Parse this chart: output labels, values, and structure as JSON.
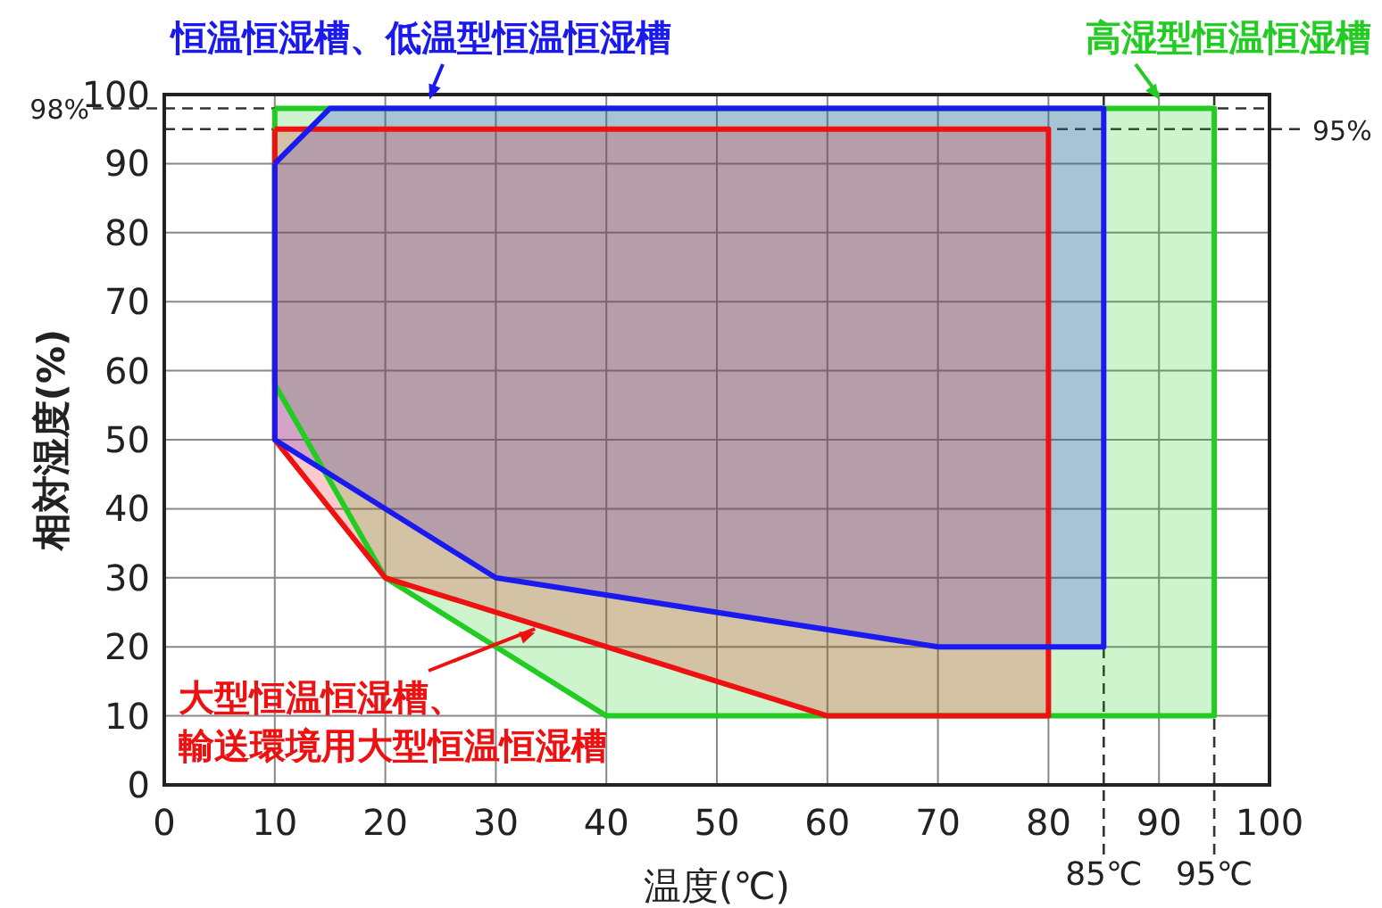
{
  "chart_data": {
    "type": "area",
    "xlabel": "温度(℃)",
    "ylabel": "相対湿度(%)",
    "xlim": [
      0,
      100
    ],
    "ylim": [
      0,
      100
    ],
    "xticks": [
      0,
      10,
      20,
      30,
      40,
      50,
      60,
      70,
      80,
      90,
      100
    ],
    "yticks": [
      0,
      10,
      20,
      30,
      40,
      50,
      60,
      70,
      80,
      90,
      100
    ],
    "grid": true,
    "series": [
      {
        "name": "高湿型恒温恒湿槽",
        "color": "#22cc22",
        "x": [
          10,
          95,
          95,
          40,
          20,
          10,
          10
        ],
        "values": [
          98,
          98,
          10,
          10,
          30,
          58,
          98
        ]
      },
      {
        "name": "恒温恒湿槽、低温型恒温恒湿槽",
        "color": "#1a1aee",
        "x": [
          10,
          15,
          85,
          85,
          70,
          30,
          10,
          10
        ],
        "values": [
          90,
          98,
          98,
          20,
          20,
          30,
          50,
          90
        ]
      },
      {
        "name": "大型恒温恒湿槽、輸送環境用大型恒温恒湿槽",
        "color": "#ee1111",
        "x": [
          10,
          80,
          80,
          60,
          20,
          10,
          10
        ],
        "values": [
          95,
          95,
          10,
          10,
          30,
          50,
          95
        ]
      }
    ],
    "ref_lines": [
      {
        "axis": "y",
        "value": 98,
        "label": "98%",
        "line_style": "dashed"
      },
      {
        "axis": "y",
        "value": 95,
        "label": "95%",
        "line_style": "dashed"
      },
      {
        "axis": "x",
        "value": 85,
        "label": "85℃",
        "line_style": "dashed"
      },
      {
        "axis": "x",
        "value": 95,
        "label": "95℃",
        "line_style": "dashed"
      }
    ]
  }
}
